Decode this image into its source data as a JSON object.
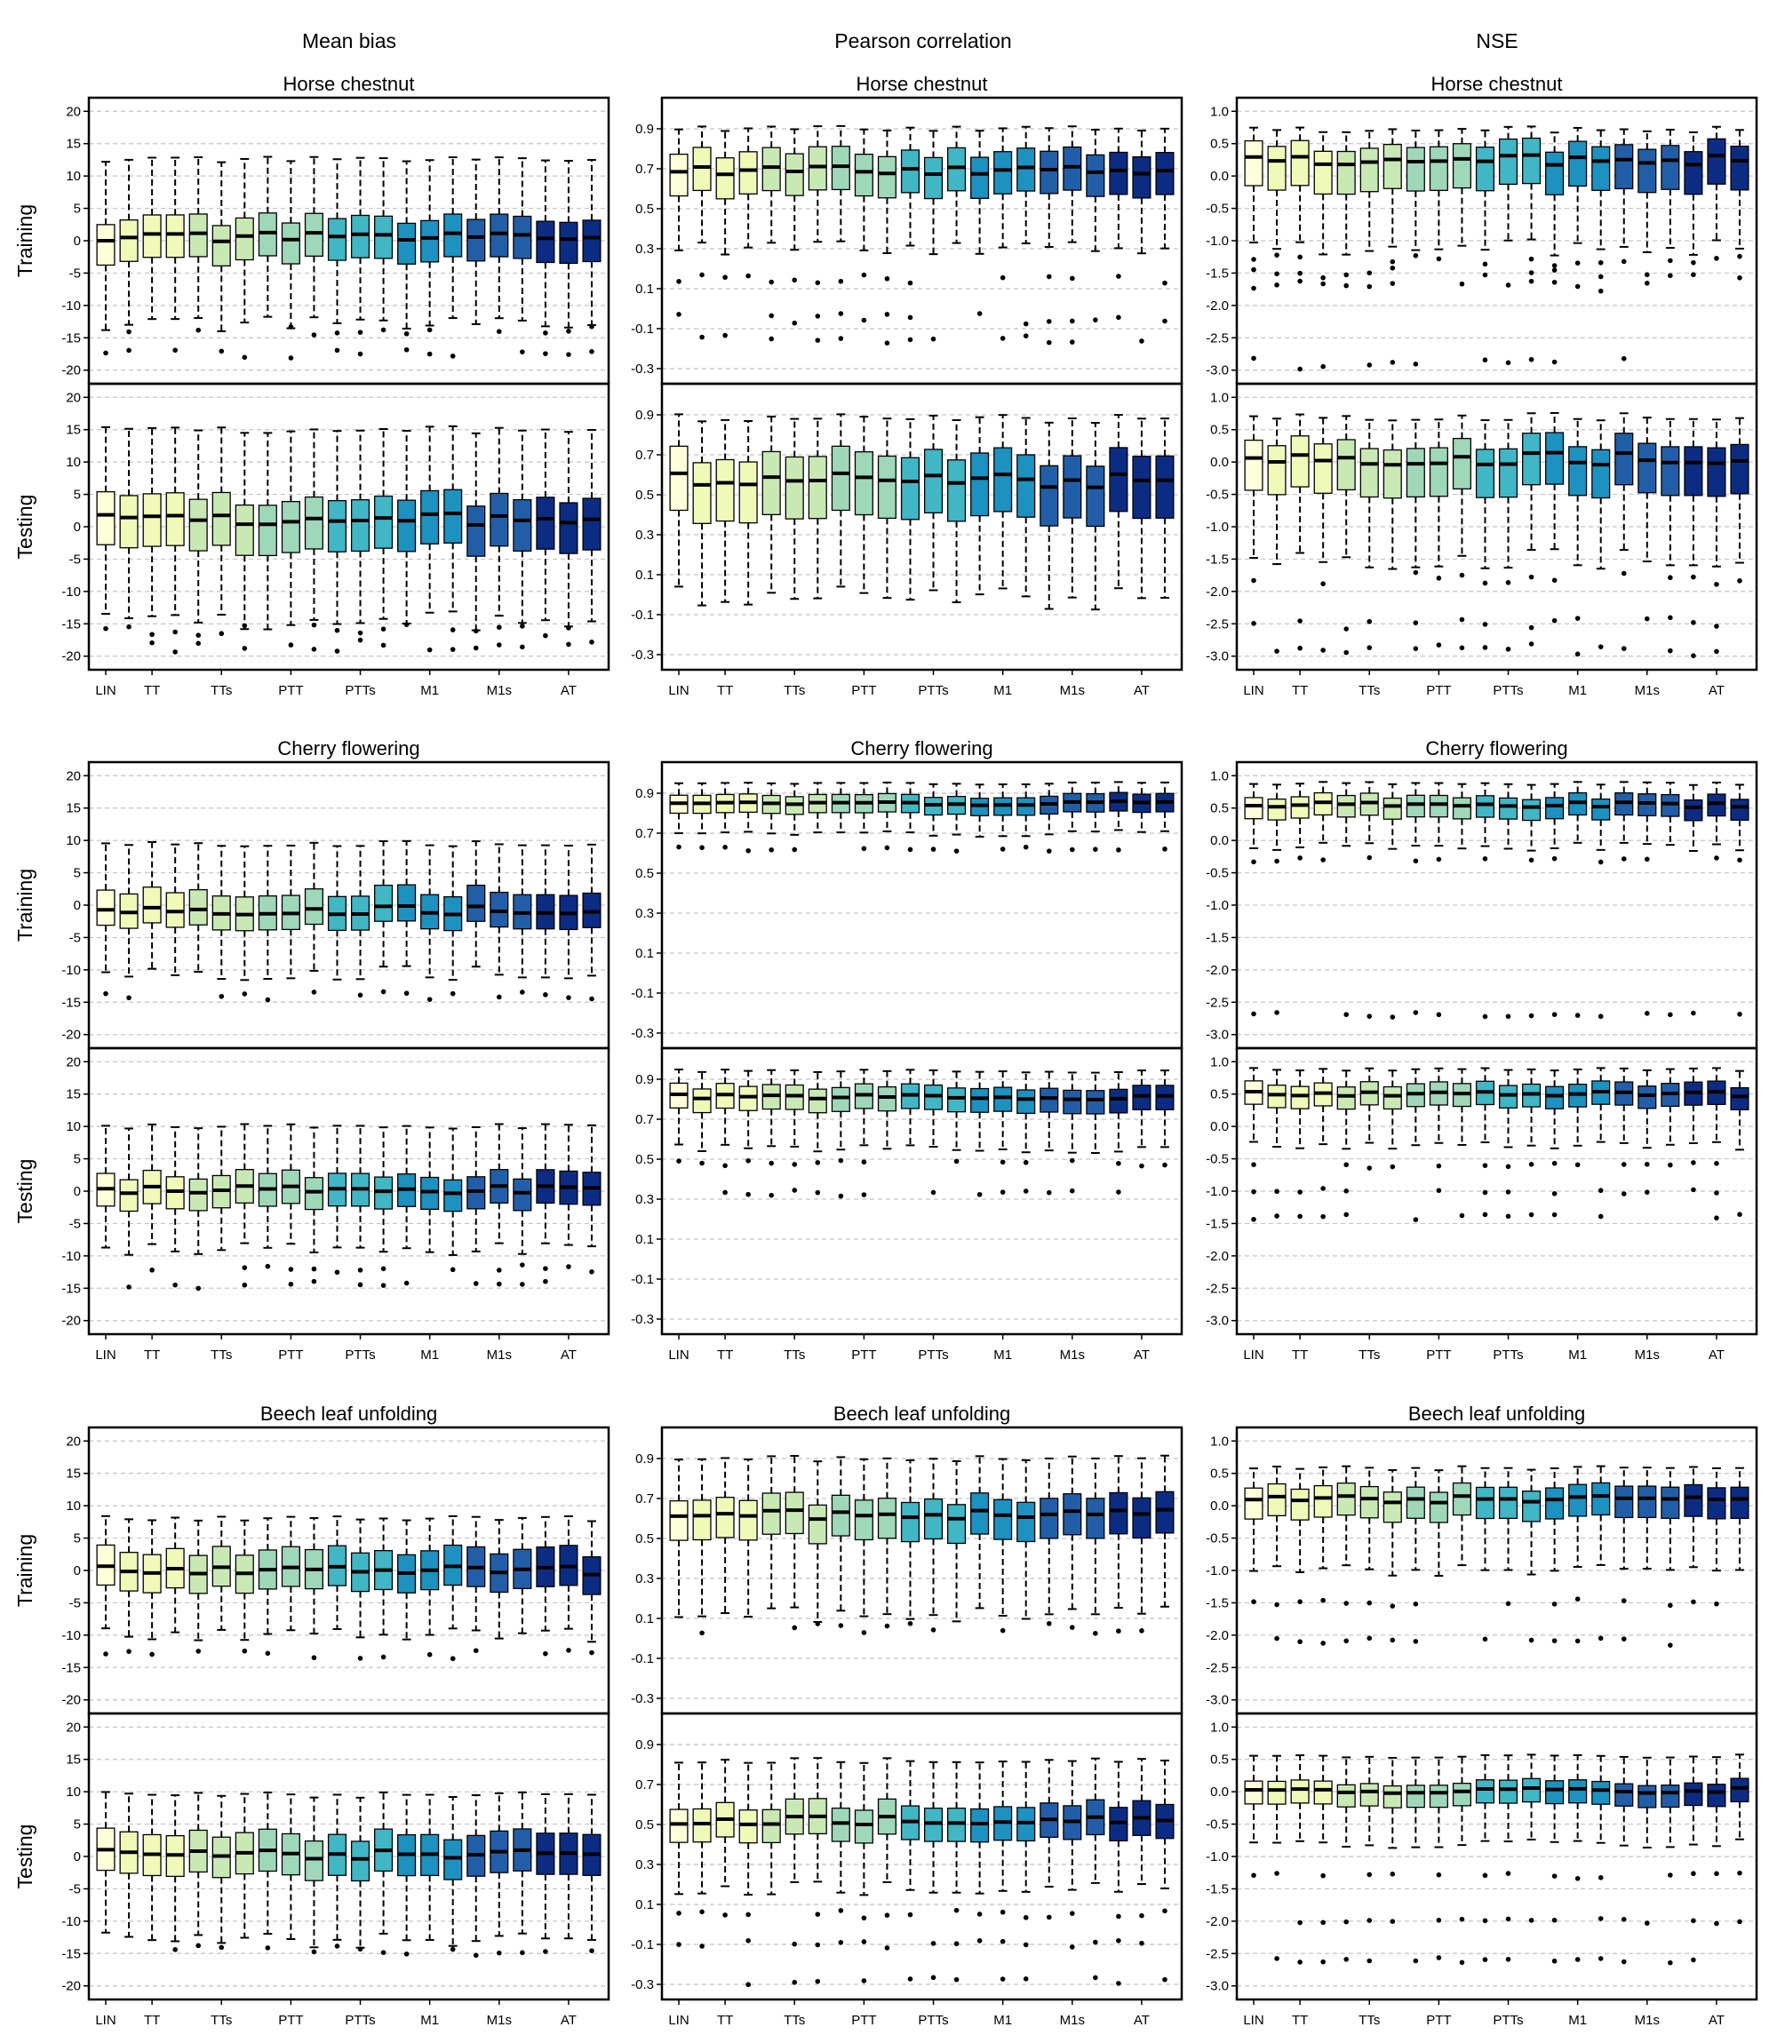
{
  "columns": [
    "Mean bias",
    "Pearson correlation",
    "NSE"
  ],
  "rows": [
    "Training",
    "Testing"
  ],
  "species": [
    "Horse chestnut",
    "Cherry flowering",
    "Beech leaf unfolding"
  ],
  "x_tick_labels": [
    "LIN",
    "TT",
    "TTs",
    "PTT",
    "PTTs",
    "M1",
    "M1s",
    "AT"
  ],
  "model_groups": [
    {
      "name": "LIN",
      "count": 1,
      "color": "#ffffd9"
    },
    {
      "name": "TT",
      "count": 3,
      "color": "#f1f9b9"
    },
    {
      "name": "TTs",
      "count": 3,
      "color": "#c9e9b4"
    },
    {
      "name": "PTT",
      "count": 3,
      "color": "#9fd8b9"
    },
    {
      "name": "PTTs",
      "count": 3,
      "color": "#41b6c4"
    },
    {
      "name": "M1",
      "count": 3,
      "color": "#1d91c0"
    },
    {
      "name": "M1s",
      "count": 3,
      "color": "#225ea8"
    },
    {
      "name": "AT",
      "count": 3,
      "color": "#0c2c84"
    }
  ],
  "axes": {
    "mean_bias": {
      "ylim": [
        -21,
        21
      ],
      "ticks": [
        "20",
        "15",
        "10",
        "5",
        "0",
        "-5",
        "-10",
        "-15",
        "-20"
      ]
    },
    "pearson": {
      "ylim": [
        -0.34,
        1.02
      ],
      "ticks": [
        "0.9",
        "0.7",
        "0.5",
        "0.3",
        "0.1",
        "-0.1",
        "-0.3"
      ]
    },
    "nse": {
      "ylim": [
        -3.1,
        1.1
      ],
      "ticks": [
        "1.0",
        "0.5",
        "0.0",
        "-0.5",
        "-1.0",
        "-1.5",
        "-2.0",
        "-2.5",
        "-3.0"
      ]
    }
  },
  "chart_data": {
    "type": "boxplot",
    "grid": "horizontal dashed",
    "series_order": "per panel: LIN, TT×3, TTs×3, PTT×3, PTTs×3, M1×3, M1s×3, AT×3 (22 boxes)",
    "panels": {
      "Horse chestnut": {
        "Mean bias": {
          "Training": {
            "q1": -3.2,
            "median": 0.5,
            "q3": 3.2,
            "whisker_low": -13,
            "whisker_high": 12.5,
            "outliers": [
              -14,
              -17.5
            ]
          },
          "Testing": {
            "q1": -3.5,
            "median": 1.2,
            "q3": 4.5,
            "whisker_low": -14.5,
            "whisker_high": 15,
            "outliers": [
              -16,
              -18.5
            ]
          }
        },
        "Pearson correlation": {
          "Training": {
            "q1": 0.57,
            "median": 0.69,
            "q3": 0.78,
            "whisker_low": 0.3,
            "whisker_high": 0.9,
            "outliers": [
              0.15,
              -0.05,
              -0.15
            ]
          },
          "Testing": {
            "q1": 0.38,
            "median": 0.57,
            "q3": 0.69,
            "whisker_low": -0.02,
            "whisker_high": 0.88,
            "outliers": []
          }
        },
        "NSE": {
          "Training": {
            "q1": -0.2,
            "median": 0.25,
            "q3": 0.48,
            "whisker_low": -1.1,
            "whisker_high": 0.72,
            "outliers": [
              -1.3,
              -1.5,
              -1.7,
              -2.9
            ]
          },
          "Testing": {
            "q1": -0.45,
            "median": 0.05,
            "q3": 0.32,
            "whisker_low": -1.5,
            "whisker_high": 0.7,
            "outliers": [
              -1.8,
              -2.5,
              -2.9
            ]
          }
        }
      },
      "Cherry flowering": {
        "Mean bias": {
          "Training": {
            "q1": -3.2,
            "median": -0.8,
            "q3": 2.2,
            "whisker_low": -10.5,
            "whisker_high": 9.5,
            "outliers": [
              -14
            ]
          },
          "Testing": {
            "q1": -2.5,
            "median": 0.2,
            "q3": 2.5,
            "whisker_low": -9,
            "whisker_high": 10,
            "outliers": [
              -12,
              -14.5
            ]
          }
        },
        "Pearson correlation": {
          "Training": {
            "q1": 0.8,
            "median": 0.85,
            "q3": 0.89,
            "whisker_low": 0.7,
            "whisker_high": 0.95,
            "outliers": [
              0.62
            ]
          },
          "Testing": {
            "q1": 0.74,
            "median": 0.81,
            "q3": 0.86,
            "whisker_low": 0.55,
            "whisker_high": 0.94,
            "outliers": [
              0.48,
              0.33
            ]
          }
        },
        "NSE": {
          "Training": {
            "q1": 0.35,
            "median": 0.55,
            "q3": 0.68,
            "whisker_low": -0.1,
            "whisker_high": 0.88,
            "outliers": [
              -0.3,
              -2.7
            ]
          },
          "Testing": {
            "q1": 0.3,
            "median": 0.5,
            "q3": 0.65,
            "whisker_low": -0.3,
            "whisker_high": 0.88,
            "outliers": [
              -0.6,
              -1.0,
              -1.4
            ]
          }
        }
      },
      "Beech leaf unfolding": {
        "Mean bias": {
          "Training": {
            "q1": -3,
            "median": 0,
            "q3": 3,
            "whisker_low": -10,
            "whisker_high": 8,
            "outliers": [
              -13
            ]
          },
          "Testing": {
            "q1": -3,
            "median": 0.3,
            "q3": 3.3,
            "whisker_low": -13,
            "whisker_high": 9.5,
            "outliers": [
              -14.5
            ]
          }
        },
        "Pearson correlation": {
          "Training": {
            "q1": 0.5,
            "median": 0.62,
            "q3": 0.7,
            "whisker_low": 0.12,
            "whisker_high": 0.9,
            "outliers": [
              0.05
            ]
          },
          "Testing": {
            "q1": 0.43,
            "median": 0.52,
            "q3": 0.6,
            "whisker_low": 0.18,
            "whisker_high": 0.82,
            "outliers": [
              0.05,
              -0.1,
              -0.28
            ]
          }
        },
        "NSE": {
          "Training": {
            "q1": -0.2,
            "median": 0.1,
            "q3": 0.28,
            "whisker_low": -1.0,
            "whisker_high": 0.58,
            "outliers": [
              -1.5,
              -2.1
            ]
          },
          "Testing": {
            "q1": -0.2,
            "median": 0.02,
            "q3": 0.15,
            "whisker_low": -0.8,
            "whisker_high": 0.55,
            "outliers": [
              -1.3,
              -2.0,
              -2.6
            ]
          }
        }
      }
    }
  }
}
